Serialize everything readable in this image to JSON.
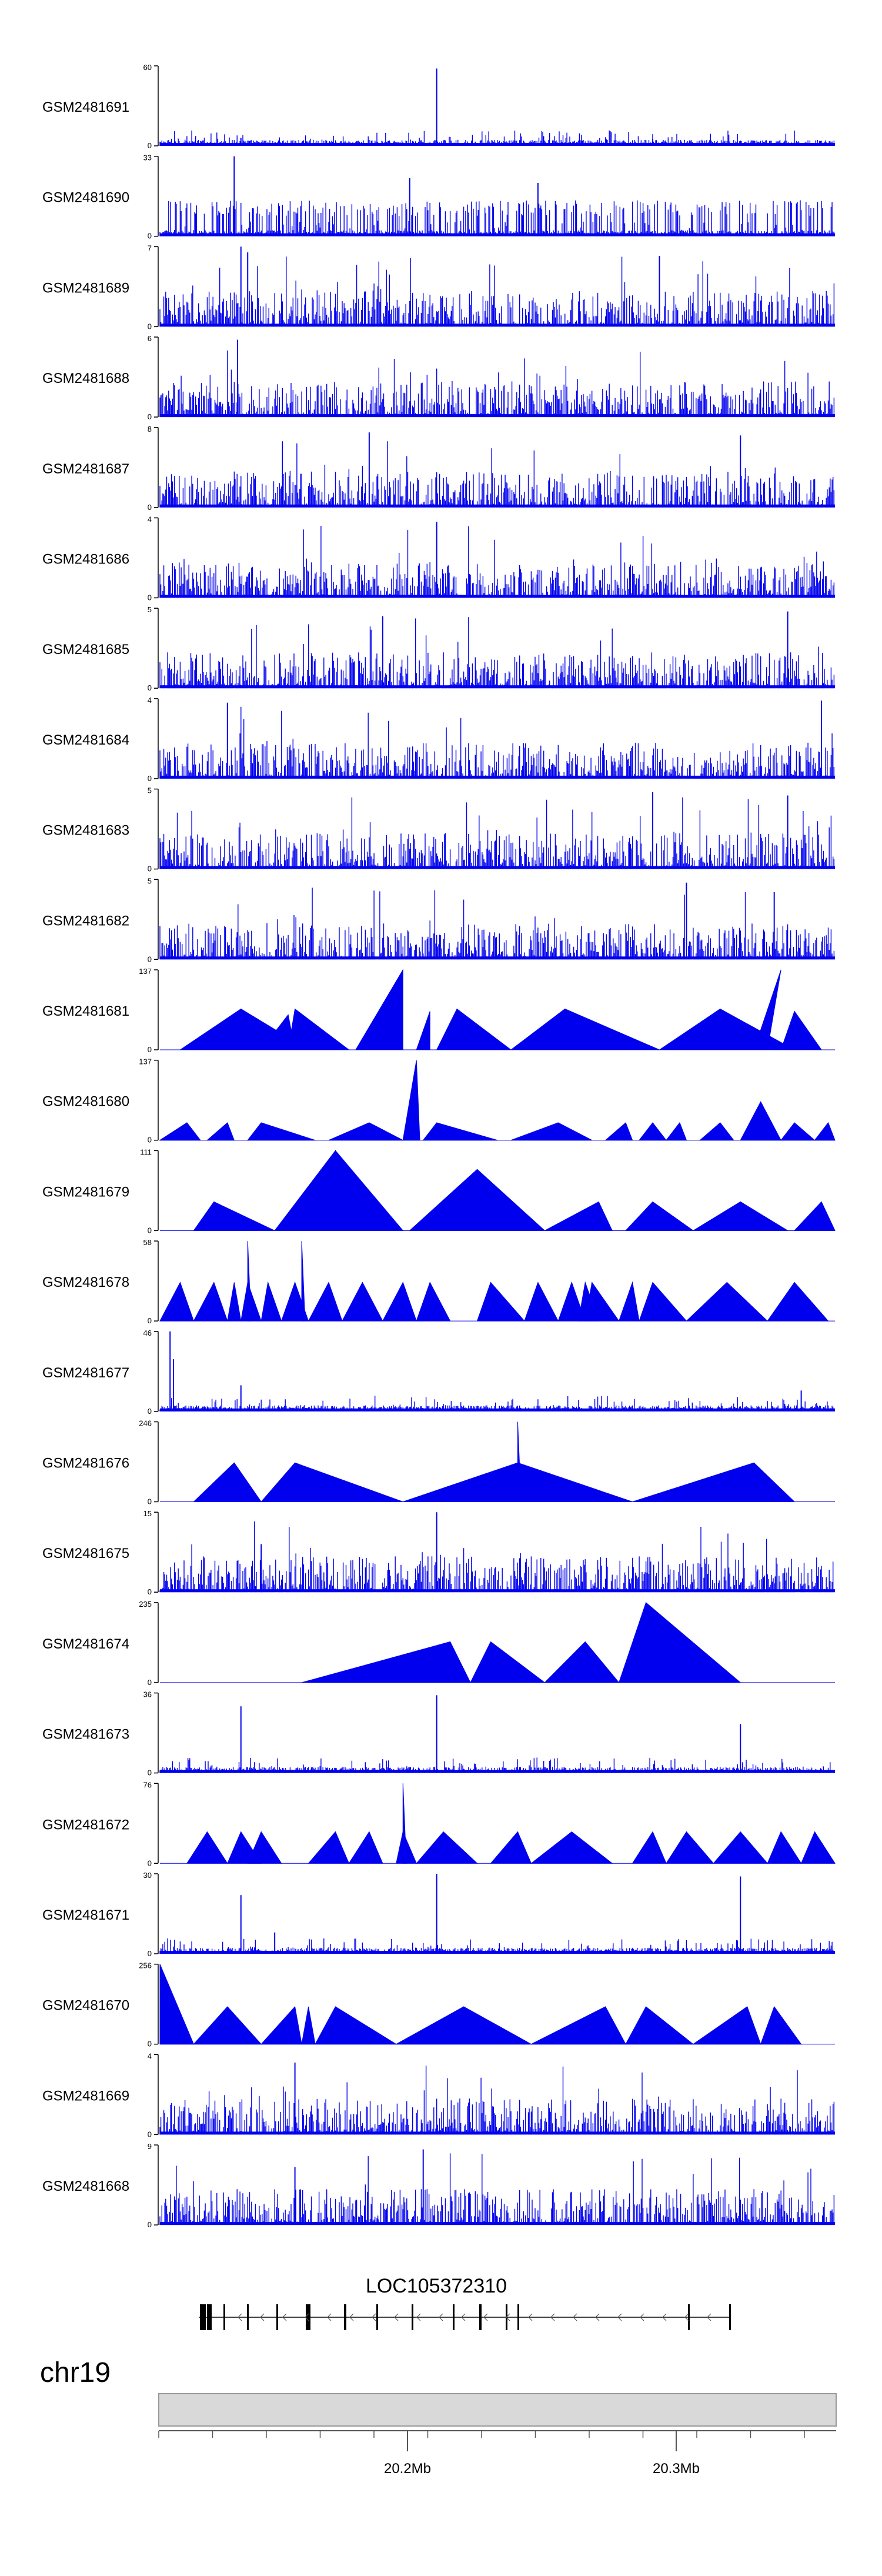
{
  "chart_data": {
    "type": "area",
    "title": "",
    "colors": {
      "signal": "#0000ee",
      "axis": "#000000",
      "ideogram": "#d9d9d9",
      "gene": "#000000"
    },
    "grid": false,
    "x_axis": {
      "chromosome": "chr19",
      "ticks": [
        {
          "label": "20.2Mb"
        },
        {
          "label": "20.3Mb"
        }
      ]
    },
    "gene_track": {
      "label": "LOC105372310"
    },
    "tracks": [
      {
        "name": "GSM2481691",
        "ymax_label": "60",
        "ymin_label": "0",
        "ymax": 60,
        "style": "noise",
        "peaks": [
          [
            0.41,
            58
          ],
          [
            0.12,
            6
          ],
          [
            0.73,
            5
          ],
          [
            0.88,
            4
          ]
        ]
      },
      {
        "name": "GSM2481690",
        "ymax_label": "33",
        "ymin_label": "0",
        "ymax": 33,
        "style": "sparse-dense",
        "peaks": [
          [
            0.11,
            33
          ],
          [
            0.37,
            24
          ],
          [
            0.56,
            22
          ]
        ]
      },
      {
        "name": "GSM2481689",
        "ymax_label": "7",
        "ymin_label": "0",
        "ymax": 7,
        "style": "noise",
        "peaks": [
          [
            0.12,
            7
          ],
          [
            0.13,
            6.5
          ],
          [
            0.74,
            6.2
          ]
        ]
      },
      {
        "name": "GSM2481688",
        "ymax_label": "6",
        "ymin_label": "0",
        "ymax": 6,
        "style": "noise",
        "peaks": [
          [
            0.115,
            5.8
          ]
        ]
      },
      {
        "name": "GSM2481687",
        "ymax_label": "8",
        "ymin_label": "0",
        "ymax": 8,
        "style": "noise",
        "peaks": [
          [
            0.31,
            7.5
          ],
          [
            0.86,
            7.2
          ]
        ]
      },
      {
        "name": "GSM2481686",
        "ymax_label": "4",
        "ymin_label": "0",
        "ymax": 4,
        "style": "noise",
        "peaks": [
          [
            0.41,
            3.8
          ]
        ]
      },
      {
        "name": "GSM2481685",
        "ymax_label": "5",
        "ymin_label": "0",
        "ymax": 5,
        "style": "noise",
        "peaks": [
          [
            0.93,
            4.8
          ],
          [
            0.33,
            4.5
          ]
        ]
      },
      {
        "name": "GSM2481684",
        "ymax_label": "4",
        "ymin_label": "0",
        "ymax": 4,
        "style": "noise",
        "peaks": [
          [
            0.1,
            3.8
          ],
          [
            0.98,
            3.9
          ]
        ]
      },
      {
        "name": "GSM2481683",
        "ymax_label": "5",
        "ymin_label": "0",
        "ymax": 5,
        "style": "noise",
        "peaks": [
          [
            0.73,
            4.8
          ],
          [
            0.93,
            4.6
          ]
        ]
      },
      {
        "name": "GSM2481682",
        "ymax_label": "5",
        "ymin_label": "0",
        "ymax": 5,
        "style": "noise",
        "peaks": [
          [
            0.78,
            4.8
          ],
          [
            0.91,
            4.2
          ]
        ]
      },
      {
        "name": "GSM2481681",
        "ymax_label": "137",
        "ymin_label": "0",
        "ymax": 137,
        "style": "triangles",
        "triangles": [
          [
            0.03,
            0.12,
            0.22,
            70
          ],
          [
            0.15,
            0.19,
            0.2,
            60
          ],
          [
            0.19,
            0.2,
            0.28,
            70
          ],
          [
            0.29,
            0.36,
            0.36,
            137
          ],
          [
            0.38,
            0.4,
            0.4,
            66
          ],
          [
            0.41,
            0.44,
            0.52,
            70
          ],
          [
            0.52,
            0.6,
            0.74,
            70
          ],
          [
            0.74,
            0.83,
            0.94,
            70
          ],
          [
            0.88,
            0.92,
            0.9,
            137
          ],
          [
            0.92,
            0.94,
            0.98,
            66
          ]
        ]
      },
      {
        "name": "GSM2481680",
        "ymax_label": "137",
        "ymin_label": "0",
        "ymax": 137,
        "style": "triangles",
        "triangles": [
          [
            0.0,
            0.04,
            0.06,
            30
          ],
          [
            0.07,
            0.1,
            0.11,
            30
          ],
          [
            0.13,
            0.15,
            0.23,
            30
          ],
          [
            0.25,
            0.31,
            0.36,
            30
          ],
          [
            0.36,
            0.38,
            0.385,
            137
          ],
          [
            0.39,
            0.41,
            0.5,
            30
          ],
          [
            0.52,
            0.59,
            0.64,
            30
          ],
          [
            0.66,
            0.69,
            0.7,
            30
          ],
          [
            0.71,
            0.73,
            0.75,
            30
          ],
          [
            0.75,
            0.77,
            0.78,
            30
          ],
          [
            0.8,
            0.83,
            0.85,
            30
          ],
          [
            0.86,
            0.89,
            0.92,
            66
          ],
          [
            0.92,
            0.94,
            0.97,
            30
          ],
          [
            0.97,
            0.99,
            1.0,
            30
          ]
        ]
      },
      {
        "name": "GSM2481679",
        "ymax_label": "111",
        "ymin_label": "0",
        "ymax": 111,
        "style": "triangles",
        "triangles": [
          [
            0.05,
            0.08,
            0.17,
            40
          ],
          [
            0.17,
            0.26,
            0.26,
            111
          ],
          [
            0.26,
            0.26,
            0.36,
            111
          ],
          [
            0.37,
            0.47,
            0.57,
            85
          ],
          [
            0.57,
            0.65,
            0.67,
            40
          ],
          [
            0.69,
            0.73,
            0.79,
            40
          ],
          [
            0.79,
            0.86,
            0.93,
            40
          ],
          [
            0.94,
            0.98,
            1.0,
            40
          ]
        ]
      },
      {
        "name": "GSM2481678",
        "ymax_label": "58",
        "ymin_label": "0",
        "ymax": 58,
        "style": "triangles",
        "triangles": [
          [
            0.0,
            0.03,
            0.05,
            28
          ],
          [
            0.05,
            0.08,
            0.1,
            28
          ],
          [
            0.1,
            0.11,
            0.12,
            28
          ],
          [
            0.12,
            0.13,
            0.15,
            28
          ],
          [
            0.13,
            0.13,
            0.135,
            58
          ],
          [
            0.15,
            0.16,
            0.18,
            28
          ],
          [
            0.18,
            0.2,
            0.22,
            28
          ],
          [
            0.21,
            0.21,
            0.215,
            58
          ],
          [
            0.22,
            0.25,
            0.27,
            28
          ],
          [
            0.27,
            0.3,
            0.33,
            28
          ],
          [
            0.33,
            0.36,
            0.38,
            28
          ],
          [
            0.38,
            0.4,
            0.43,
            28
          ],
          [
            0.47,
            0.49,
            0.54,
            28
          ],
          [
            0.54,
            0.56,
            0.59,
            28
          ],
          [
            0.59,
            0.61,
            0.63,
            28
          ],
          [
            0.62,
            0.63,
            0.65,
            28
          ],
          [
            0.63,
            0.64,
            0.68,
            28
          ],
          [
            0.68,
            0.7,
            0.71,
            28
          ],
          [
            0.71,
            0.73,
            0.78,
            28
          ],
          [
            0.78,
            0.84,
            0.9,
            28
          ],
          [
            0.9,
            0.94,
            0.99,
            28
          ]
        ]
      },
      {
        "name": "GSM2481677",
        "ymax_label": "46",
        "ymin_label": "0",
        "ymax": 46,
        "style": "noise",
        "peaks": [
          [
            0.015,
            46
          ],
          [
            0.02,
            30
          ],
          [
            0.12,
            15
          ],
          [
            0.95,
            12
          ]
        ]
      },
      {
        "name": "GSM2481676",
        "ymax_label": "246",
        "ymin_label": "0",
        "ymax": 246,
        "style": "triangles",
        "triangles": [
          [
            0.05,
            0.11,
            0.15,
            120
          ],
          [
            0.15,
            0.2,
            0.36,
            120
          ],
          [
            0.36,
            0.53,
            0.7,
            120
          ],
          [
            0.7,
            0.88,
            0.94,
            120
          ],
          [
            0.53,
            0.53,
            0.535,
            246
          ]
        ]
      },
      {
        "name": "GSM2481675",
        "ymax_label": "15",
        "ymin_label": "0",
        "ymax": 15,
        "style": "noise",
        "peaks": [
          [
            0.41,
            15
          ],
          [
            0.15,
            9
          ]
        ]
      },
      {
        "name": "GSM2481674",
        "ymax_label": "235",
        "ymin_label": "0",
        "ymax": 235,
        "style": "triangles",
        "triangles": [
          [
            0.21,
            0.43,
            0.46,
            120
          ],
          [
            0.46,
            0.49,
            0.57,
            120
          ],
          [
            0.57,
            0.63,
            0.68,
            120
          ],
          [
            0.68,
            0.72,
            0.86,
            235
          ]
        ]
      },
      {
        "name": "GSM2481673",
        "ymax_label": "36",
        "ymin_label": "0",
        "ymax": 36,
        "style": "noise",
        "peaks": [
          [
            0.41,
            35
          ],
          [
            0.12,
            30
          ],
          [
            0.86,
            22
          ]
        ]
      },
      {
        "name": "GSM2481672",
        "ymax_label": "76",
        "ymin_label": "0",
        "ymax": 76,
        "style": "triangles",
        "triangles": [
          [
            0.04,
            0.07,
            0.1,
            30
          ],
          [
            0.1,
            0.12,
            0.15,
            30
          ],
          [
            0.13,
            0.15,
            0.18,
            30
          ],
          [
            0.22,
            0.26,
            0.28,
            30
          ],
          [
            0.28,
            0.31,
            0.33,
            30
          ],
          [
            0.35,
            0.36,
            0.38,
            30
          ],
          [
            0.36,
            0.36,
            0.365,
            76
          ],
          [
            0.38,
            0.42,
            0.47,
            30
          ],
          [
            0.49,
            0.53,
            0.55,
            30
          ],
          [
            0.55,
            0.61,
            0.67,
            30
          ],
          [
            0.7,
            0.73,
            0.75,
            30
          ],
          [
            0.75,
            0.78,
            0.82,
            30
          ],
          [
            0.82,
            0.86,
            0.9,
            30
          ],
          [
            0.9,
            0.92,
            0.95,
            30
          ],
          [
            0.95,
            0.97,
            1.0,
            30
          ]
        ]
      },
      {
        "name": "GSM2481671",
        "ymax_label": "30",
        "ymin_label": "0",
        "ymax": 30,
        "style": "noise",
        "peaks": [
          [
            0.41,
            30
          ],
          [
            0.86,
            29
          ],
          [
            0.12,
            22
          ],
          [
            0.17,
            8
          ]
        ]
      },
      {
        "name": "GSM2481670",
        "ymax_label": "256",
        "ymin_label": "0",
        "ymax": 256,
        "style": "triangles",
        "triangles": [
          [
            0.0,
            0.0,
            0.05,
            256
          ],
          [
            0.05,
            0.1,
            0.15,
            120
          ],
          [
            0.15,
            0.2,
            0.21,
            120
          ],
          [
            0.21,
            0.22,
            0.23,
            120
          ],
          [
            0.23,
            0.26,
            0.35,
            120
          ],
          [
            0.35,
            0.45,
            0.55,
            120
          ],
          [
            0.55,
            0.66,
            0.69,
            120
          ],
          [
            0.69,
            0.72,
            0.79,
            120
          ],
          [
            0.79,
            0.87,
            0.89,
            120
          ],
          [
            0.89,
            0.91,
            0.95,
            120
          ]
        ]
      },
      {
        "name": "GSM2481669",
        "ymax_label": "4",
        "ymin_label": "0",
        "ymax": 4,
        "style": "noise",
        "peaks": [
          [
            0.2,
            3.6
          ]
        ]
      },
      {
        "name": "GSM2481668",
        "ymax_label": "9",
        "ymin_label": "0",
        "ymax": 9,
        "style": "noise",
        "peaks": [
          [
            0.39,
            8.5
          ],
          [
            0.2,
            6.5
          ]
        ]
      }
    ]
  }
}
